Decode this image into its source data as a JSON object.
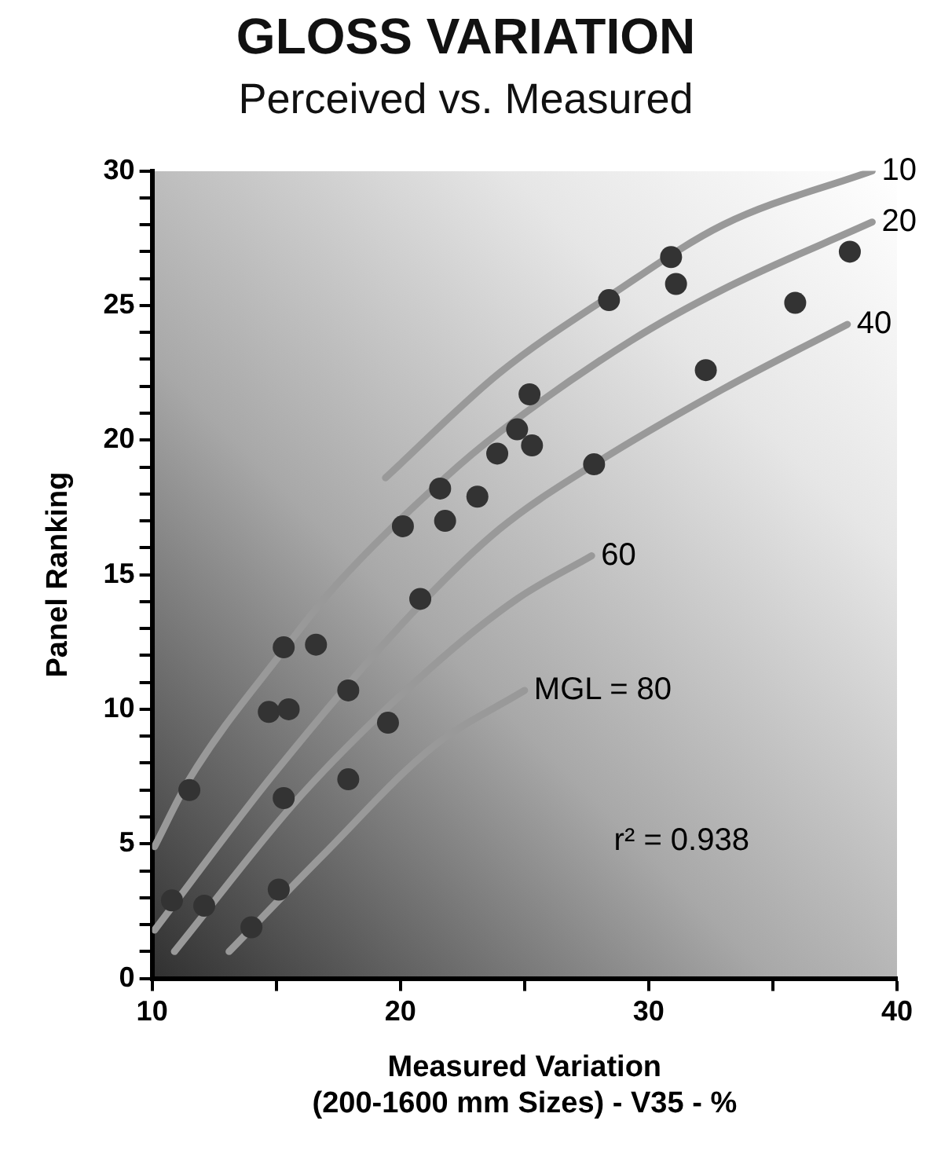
{
  "chart_data": {
    "type": "scatter",
    "title": "GLOSS VARIATION",
    "subtitle": "Perceived vs. Measured",
    "xlabel": "Measured Variation\n(200-1600 mm Sizes) - V35 - %",
    "ylabel": "Panel Ranking",
    "xlim": [
      10,
      40
    ],
    "xticks": [
      10,
      {
        "value": 15,
        "label": null
      },
      20,
      {
        "value": 25,
        "label": null
      },
      30,
      {
        "value": 35,
        "label": null
      },
      40
    ],
    "ylim": [
      0,
      30
    ],
    "yticks": [
      0,
      {
        "value": 1,
        "label": null
      },
      {
        "value": 2,
        "label": null
      },
      {
        "value": 3,
        "label": null
      },
      {
        "value": 4,
        "label": null
      },
      5,
      {
        "value": 6,
        "label": null
      },
      {
        "value": 7,
        "label": null
      },
      {
        "value": 8,
        "label": null
      },
      {
        "value": 9,
        "label": null
      },
      10,
      {
        "value": 11,
        "label": null
      },
      {
        "value": 12,
        "label": null
      },
      {
        "value": 13,
        "label": null
      },
      {
        "value": 14,
        "label": null
      },
      15,
      {
        "value": 16,
        "label": null
      },
      {
        "value": 17,
        "label": null
      },
      {
        "value": 18,
        "label": null
      },
      {
        "value": 19,
        "label": null
      },
      20,
      {
        "value": 21,
        "label": null
      },
      {
        "value": 22,
        "label": null
      },
      {
        "value": 23,
        "label": null
      },
      {
        "value": 24,
        "label": null
      },
      25,
      {
        "value": 26,
        "label": null
      },
      {
        "value": 27,
        "label": null
      },
      {
        "value": 28,
        "label": null
      },
      {
        "value": 29,
        "label": null
      },
      30
    ],
    "grid": false,
    "legend": false,
    "series": [
      {
        "marker": "circle",
        "color": "#333333",
        "x": [
          10.8,
          12.1,
          11.5,
          14.0,
          15.1,
          15.3,
          14.7,
          15.5,
          15.3,
          16.6,
          17.9,
          17.9,
          19.5,
          20.8,
          20.1,
          21.8,
          21.6,
          23.1,
          23.9,
          24.7,
          25.2,
          25.3,
          27.8,
          28.4,
          30.9,
          31.1,
          32.3,
          35.9,
          38.1
        ],
        "values": [
          2.9,
          2.7,
          7.0,
          1.9,
          3.3,
          6.7,
          9.9,
          10.0,
          12.3,
          12.4,
          7.4,
          10.7,
          9.5,
          14.1,
          16.8,
          17.0,
          18.2,
          17.9,
          19.5,
          20.4,
          21.7,
          19.8,
          19.1,
          25.2,
          26.8,
          25.8,
          22.6,
          25.1,
          27.0
        ]
      },
      {
        "type": "line",
        "marker": "none",
        "name": "10",
        "color": "#999999",
        "x": [
          19.4,
          24.0,
          28.5,
          33.0,
          39.0
        ],
        "values": [
          18.6,
          22.5,
          25.4,
          28.0,
          30.0
        ]
      },
      {
        "type": "line",
        "marker": "none",
        "name": "20",
        "color": "#999999",
        "x": [
          10.1,
          11.5,
          15.3,
          17.3,
          21.8,
          24.0,
          29.3,
          33.0,
          39.0
        ],
        "values": [
          4.9,
          7.4,
          12.2,
          14.5,
          18.6,
          20.3,
          23.7,
          25.6,
          28.1
        ]
      },
      {
        "type": "line",
        "marker": "none",
        "name": "40",
        "color": "#999999",
        "x": [
          10.1,
          14.9,
          20.4,
          24.0,
          27.8,
          33.0,
          38.0
        ],
        "values": [
          1.8,
          7.6,
          13.5,
          16.7,
          19.1,
          21.9,
          24.3
        ]
      },
      {
        "type": "line",
        "marker": "none",
        "name": "60",
        "color": "#999999",
        "x": [
          10.9,
          16.0,
          21.3,
          24.7,
          27.7
        ],
        "values": [
          1.0,
          6.8,
          11.6,
          14.1,
          15.7
        ]
      },
      {
        "type": "line",
        "marker": "none",
        "name": "MGL = 80",
        "color": "#999999",
        "x": [
          13.1,
          16.9,
          21.3,
          25.0
        ],
        "values": [
          1.0,
          4.6,
          8.6,
          10.7
        ]
      }
    ],
    "annotations": [
      "r² = 0.938"
    ]
  }
}
